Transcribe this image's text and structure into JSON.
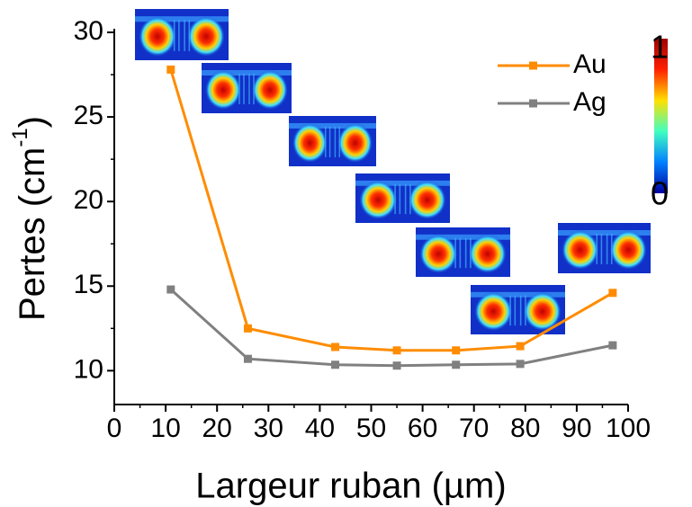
{
  "chart_data": {
    "type": "line",
    "xlabel": "Largeur ruban (µm)",
    "ylabel": [
      "Pertes (cm",
      "-1",
      ")"
    ],
    "xlim": [
      0,
      100
    ],
    "xticks": [
      0,
      10,
      20,
      30,
      40,
      50,
      60,
      70,
      80,
      90,
      100
    ],
    "ylim": [
      8,
      30
    ],
    "yticks": [
      10,
      15,
      20,
      25,
      30
    ],
    "legend": "top-right",
    "series": [
      {
        "name": "Au",
        "color": "#ff8c00",
        "x": [
          11,
          26,
          43,
          55,
          66.5,
          79,
          97
        ],
        "values": [
          27.8,
          12.5,
          11.4,
          11.2,
          11.2,
          11.45,
          14.6
        ]
      },
      {
        "name": "Ag",
        "color": "#808080",
        "x": [
          11,
          26,
          43,
          55,
          66.5,
          79,
          97
        ],
        "values": [
          14.8,
          10.7,
          10.35,
          10.3,
          10.35,
          10.4,
          11.5
        ]
      }
    ],
    "colorbar": {
      "ticks": [
        0,
        1
      ]
    }
  }
}
